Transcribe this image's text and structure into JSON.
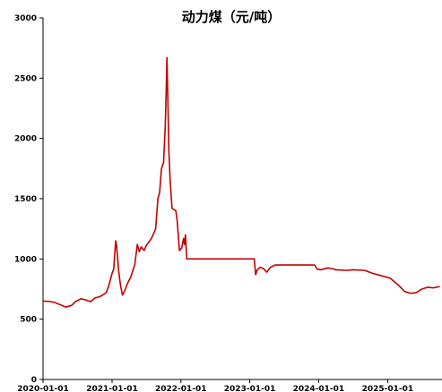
{
  "chart_data": {
    "type": "line",
    "title": "动力煤（元/吨）",
    "xlabel": "",
    "ylabel": "",
    "x_ticks": [
      "2020-01-01",
      "2021-01-01",
      "2022-01-01",
      "2023-01-01",
      "2024-01-01",
      "2025-01-01"
    ],
    "y_ticks": [
      0,
      500,
      1000,
      1500,
      2000,
      2500,
      3000
    ],
    "xlim": [
      "2020-01-01",
      "2025-10-01"
    ],
    "ylim": [
      0,
      3000
    ],
    "grid": false,
    "legend": "none",
    "series": [
      {
        "color": "#c00000",
        "points": [
          [
            "2020-01-01",
            650
          ],
          [
            "2020-02-01",
            648
          ],
          [
            "2020-03-01",
            640
          ],
          [
            "2020-04-01",
            620
          ],
          [
            "2020-05-01",
            600
          ],
          [
            "2020-06-01",
            615
          ],
          [
            "2020-06-20",
            645
          ],
          [
            "2020-07-20",
            670
          ],
          [
            "2020-08-15",
            660
          ],
          [
            "2020-09-10",
            645
          ],
          [
            "2020-10-01",
            675
          ],
          [
            "2020-11-01",
            690
          ],
          [
            "2020-12-01",
            720
          ],
          [
            "2020-12-15",
            780
          ],
          [
            "2021-01-01",
            880
          ],
          [
            "2021-01-10",
            920
          ],
          [
            "2021-01-20",
            1150
          ],
          [
            "2021-01-25",
            1110
          ],
          [
            "2021-02-05",
            900
          ],
          [
            "2021-02-15",
            780
          ],
          [
            "2021-02-25",
            700
          ],
          [
            "2021-03-10",
            740
          ],
          [
            "2021-03-25",
            800
          ],
          [
            "2021-04-10",
            850
          ],
          [
            "2021-05-01",
            950
          ],
          [
            "2021-05-15",
            1120
          ],
          [
            "2021-05-25",
            1060
          ],
          [
            "2021-06-05",
            1100
          ],
          [
            "2021-06-20",
            1070
          ],
          [
            "2021-07-01",
            1110
          ],
          [
            "2021-07-20",
            1150
          ],
          [
            "2021-08-01",
            1180
          ],
          [
            "2021-08-20",
            1250
          ],
          [
            "2021-09-01",
            1500
          ],
          [
            "2021-09-10",
            1550
          ],
          [
            "2021-09-20",
            1750
          ],
          [
            "2021-10-01",
            1800
          ],
          [
            "2021-10-10",
            2100
          ],
          [
            "2021-10-15",
            2400
          ],
          [
            "2021-10-19",
            2670
          ],
          [
            "2021-10-24",
            2300
          ],
          [
            "2021-10-29",
            1900
          ],
          [
            "2021-11-05",
            1650
          ],
          [
            "2021-11-15",
            1420
          ],
          [
            "2021-11-25",
            1410
          ],
          [
            "2021-12-05",
            1400
          ],
          [
            "2021-12-12",
            1320
          ],
          [
            "2021-12-18",
            1200
          ],
          [
            "2021-12-24",
            1070
          ],
          [
            "2022-01-05",
            1090
          ],
          [
            "2022-01-15",
            1170
          ],
          [
            "2022-01-20",
            1120
          ],
          [
            "2022-01-25",
            1200
          ],
          [
            "2022-02-01",
            1000
          ],
          [
            "2023-01-25",
            1000
          ],
          [
            "2023-02-01",
            870
          ],
          [
            "2023-02-10",
            910
          ],
          [
            "2023-02-25",
            930
          ],
          [
            "2023-03-15",
            920
          ],
          [
            "2023-04-01",
            890
          ],
          [
            "2023-04-20",
            930
          ],
          [
            "2023-05-15",
            950
          ],
          [
            "2023-12-10",
            950
          ],
          [
            "2023-12-25",
            915
          ],
          [
            "2024-01-15",
            910
          ],
          [
            "2024-02-15",
            925
          ],
          [
            "2024-03-15",
            920
          ],
          [
            "2024-04-01",
            910
          ],
          [
            "2024-06-01",
            905
          ],
          [
            "2024-07-01",
            910
          ],
          [
            "2024-09-01",
            905
          ],
          [
            "2024-10-15",
            880
          ],
          [
            "2024-12-01",
            860
          ],
          [
            "2025-01-15",
            840
          ],
          [
            "2025-03-01",
            780
          ],
          [
            "2025-04-01",
            730
          ],
          [
            "2025-05-01",
            715
          ],
          [
            "2025-06-01",
            720
          ],
          [
            "2025-07-01",
            750
          ],
          [
            "2025-08-01",
            765
          ],
          [
            "2025-09-01",
            760
          ],
          [
            "2025-10-01",
            770
          ]
        ]
      }
    ]
  }
}
